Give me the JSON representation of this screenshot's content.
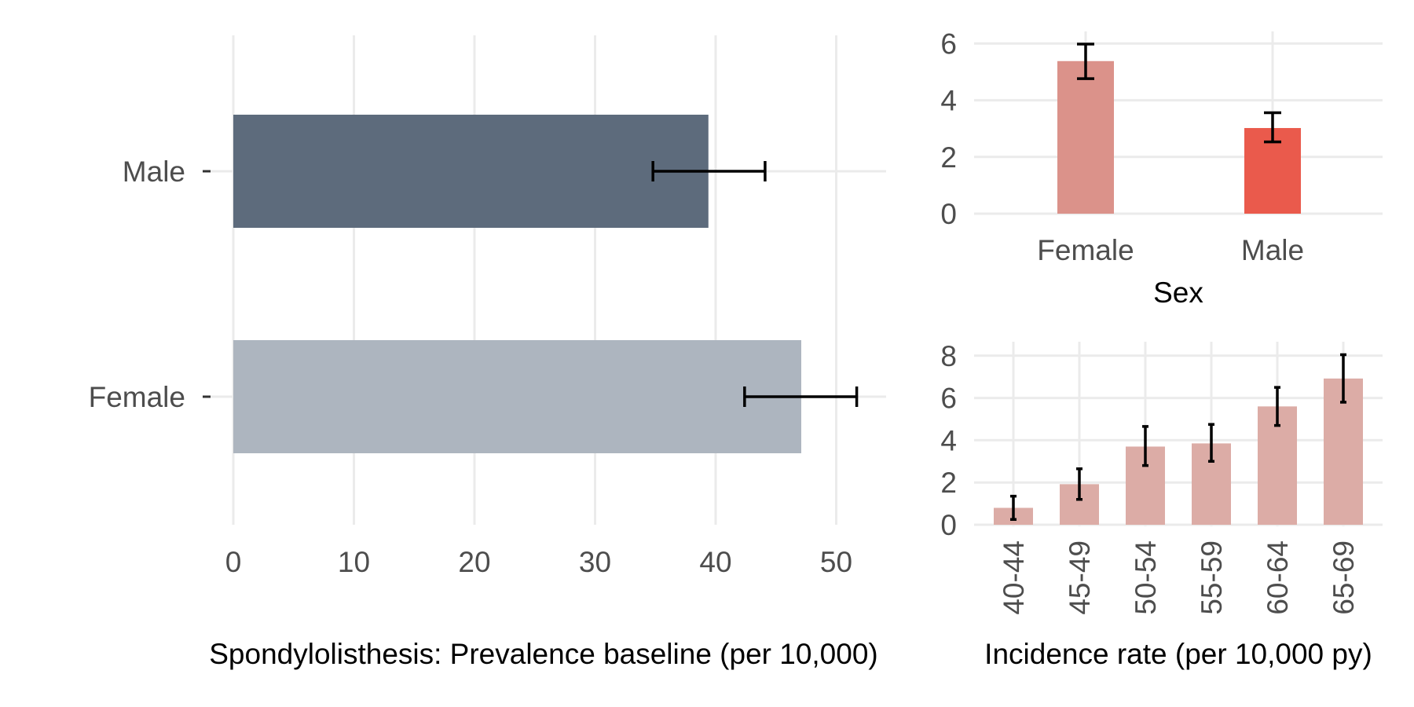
{
  "chart_data": [
    {
      "id": "prevalence",
      "type": "bar",
      "orientation": "horizontal",
      "categories": [
        "Male",
        "Female"
      ],
      "values": [
        39.4,
        47.1
      ],
      "ci_low": [
        34.8,
        42.4
      ],
      "ci_high": [
        44.1,
        51.7
      ],
      "colors": [
        "#5d6b7c",
        "#adb5bf"
      ],
      "title": "",
      "xlabel": "Spondylolisthesis: Prevalence baseline (per 10,000)",
      "ylabel": "",
      "xlim": [
        0,
        54
      ],
      "xticks": [
        "0",
        "10",
        "20",
        "30",
        "40",
        "50"
      ],
      "grid": true
    },
    {
      "id": "incidence_sex",
      "type": "bar",
      "categories": [
        "Female",
        "Male"
      ],
      "values": [
        5.38,
        3.02
      ],
      "ci_low": [
        4.76,
        2.53
      ],
      "ci_high": [
        5.98,
        3.56
      ],
      "colors": [
        "#db928a",
        "#ea5a4c"
      ],
      "title": "",
      "xlabel": "Sex",
      "ylabel": "",
      "ylim": [
        0,
        6.4
      ],
      "yticks": [
        "0",
        "2",
        "4",
        "6"
      ],
      "grid": true
    },
    {
      "id": "incidence_age",
      "type": "bar",
      "categories": [
        "40-44",
        "45-49",
        "50-54",
        "55-59",
        "60-64",
        "65-69"
      ],
      "values": [
        0.8,
        1.92,
        3.7,
        3.85,
        5.6,
        6.92
      ],
      "ci_low": [
        0.25,
        1.2,
        2.8,
        3.0,
        4.7,
        5.8
      ],
      "ci_high": [
        1.35,
        2.65,
        4.65,
        4.75,
        6.5,
        8.05
      ],
      "colors": [
        "#dcaca6"
      ],
      "title": "",
      "xlabel": "Incidence rate (per 10,000 py)",
      "ylabel": "",
      "ylim": [
        0,
        8.6
      ],
      "yticks": [
        "0",
        "2",
        "4",
        "6",
        "8"
      ],
      "grid": true
    }
  ]
}
